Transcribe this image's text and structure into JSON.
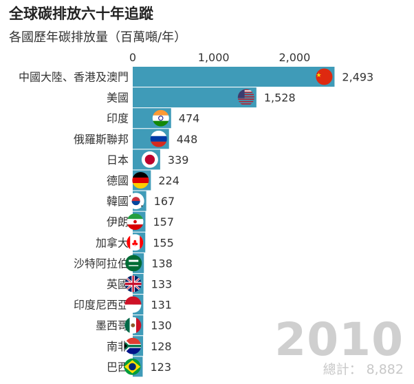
{
  "title": "全球碳排放六十年追蹤",
  "subtitle": "各國歷年碳排放量（百萬噸/年）",
  "year": "2010",
  "total_label": "總計：",
  "total_value": "8,882",
  "chart_data": {
    "type": "bar",
    "orientation": "horizontal",
    "title": "全球碳排放六十年追蹤",
    "subtitle": "各國歷年碳排放量（百萬噸/年）",
    "xlim": [
      0,
      2600
    ],
    "ticks": [
      0,
      1000,
      2000
    ],
    "tick_labels": [
      "0",
      "1,000",
      "2,000"
    ],
    "grid": false,
    "bar_color": "#3f9bb8",
    "categories": [
      "中國大陸、香港及澳門",
      "美國",
      "印度",
      "俄羅斯聯邦",
      "日本",
      "德國",
      "韓國",
      "伊朗",
      "加拿大",
      "沙特阿拉伯",
      "英國",
      "印度尼西亞",
      "墨西哥",
      "南非",
      "巴西"
    ],
    "values": [
      2493,
      1528,
      474,
      448,
      339,
      224,
      167,
      157,
      155,
      138,
      133,
      131,
      130,
      128,
      123
    ],
    "value_labels": [
      "2,493",
      "1,528",
      "474",
      "448",
      "339",
      "224",
      "167",
      "157",
      "155",
      "138",
      "133",
      "131",
      "130",
      "128",
      "123"
    ],
    "flags": [
      "china-flag",
      "usa-flag",
      "india-flag",
      "russia-flag",
      "japan-flag",
      "germany-flag",
      "korea-flag",
      "iran-flag",
      "canada-flag",
      "saudi-flag",
      "uk-flag",
      "indonesia-flag",
      "mexico-flag",
      "south-africa-flag",
      "brazil-flag"
    ]
  }
}
